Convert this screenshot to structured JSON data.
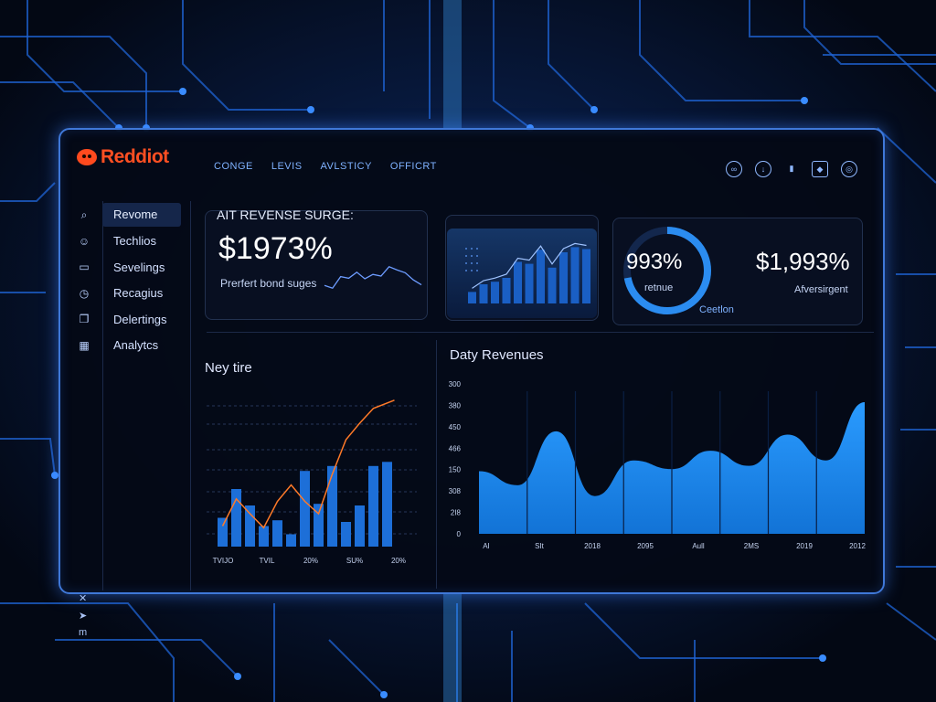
{
  "brand": {
    "name": "Reddiot"
  },
  "topnav": [
    "CONGE",
    "LEVIS",
    "AVLSTICY",
    "OFFICRT"
  ],
  "top_icons": [
    "link-icon",
    "download-icon",
    "bar-chart-icon",
    "shield-icon",
    "globe-icon"
  ],
  "sidebar": {
    "items": [
      {
        "label": "Revome",
        "icon": "search-icon",
        "glyph": "⌕",
        "active": true
      },
      {
        "label": "Techlios",
        "icon": "users-icon",
        "glyph": "☺",
        "active": false
      },
      {
        "label": "Sevelings",
        "icon": "monitor-icon",
        "glyph": "▭",
        "active": false
      },
      {
        "label": "Recagius",
        "icon": "clock-icon",
        "glyph": "◷",
        "active": false
      },
      {
        "label": "Delertings",
        "icon": "folder-icon",
        "glyph": "❐",
        "active": false
      },
      {
        "label": "Analytcs",
        "icon": "calendar-icon",
        "glyph": "▦",
        "active": false
      }
    ],
    "bottom": [
      {
        "glyph": "✕",
        "icon": "tools-icon"
      },
      {
        "glyph": "➤",
        "icon": "send-icon"
      },
      {
        "glyph": "m",
        "icon": "menu-icon"
      }
    ]
  },
  "card_surge": {
    "title": "AIT REVENSE SURGE:",
    "value": "$1973%",
    "subtitle": "Prerfert bond suges"
  },
  "card_ring": {
    "percent_label": "993%",
    "ring_fraction": 0.72,
    "ring_caption": "retnue",
    "amount": "$1,993%",
    "amount_caption": "Afversirgent",
    "footer": "Ceetlon"
  },
  "colors": {
    "accent": "#2b8cf0",
    "brand": "#ff4f22",
    "line": "#ff7a28",
    "bar": "#1d6fd8"
  },
  "chart_data": [
    {
      "type": "line",
      "title": "",
      "series": [
        {
          "values": [
            0.38,
            0.33,
            0.54,
            0.51,
            0.62,
            0.5,
            0.58,
            0.55,
            0.72,
            0.66,
            0.61,
            0.48,
            0.39
          ]
        }
      ]
    },
    {
      "type": "bar",
      "title": "",
      "series": [
        {
          "name": "",
          "values": [
            0.18,
            0.3,
            0.34,
            0.4,
            0.65,
            0.62,
            0.84,
            0.56,
            0.8,
            0.88,
            0.85
          ]
        }
      ]
    },
    {
      "type": "bar",
      "title": "Ney tire",
      "x_labels": [
        "TVIJO",
        "TVIL",
        "20%",
        "SU%",
        "20%"
      ],
      "series": [
        {
          "name": "bars",
          "values": [
            0.35,
            0.7,
            0.5,
            0.25,
            0.32,
            0.15,
            0.92,
            0.52,
            0.98,
            0.3,
            0.5,
            0.98,
            1.03
          ]
        },
        {
          "name": "line",
          "values": [
            0.25,
            0.58,
            0.4,
            0.23,
            0.55,
            0.75,
            0.55,
            0.4,
            0.88,
            1.3,
            1.5,
            1.68,
            1.78
          ]
        }
      ]
    },
    {
      "type": "area",
      "title": "Daty Revenues",
      "y_ticks": [
        "0",
        "2I8",
        "308",
        "150",
        "466",
        "450",
        "380",
        "300"
      ],
      "x_labels": [
        "AI",
        "SIt",
        "2018",
        "2095",
        "Aull",
        "2MS",
        "2019",
        "2012"
      ],
      "values": [
        0.58,
        0.45,
        0.95,
        0.35,
        0.68,
        0.6,
        0.77,
        0.63,
        0.92,
        0.68,
        1.22
      ]
    }
  ]
}
